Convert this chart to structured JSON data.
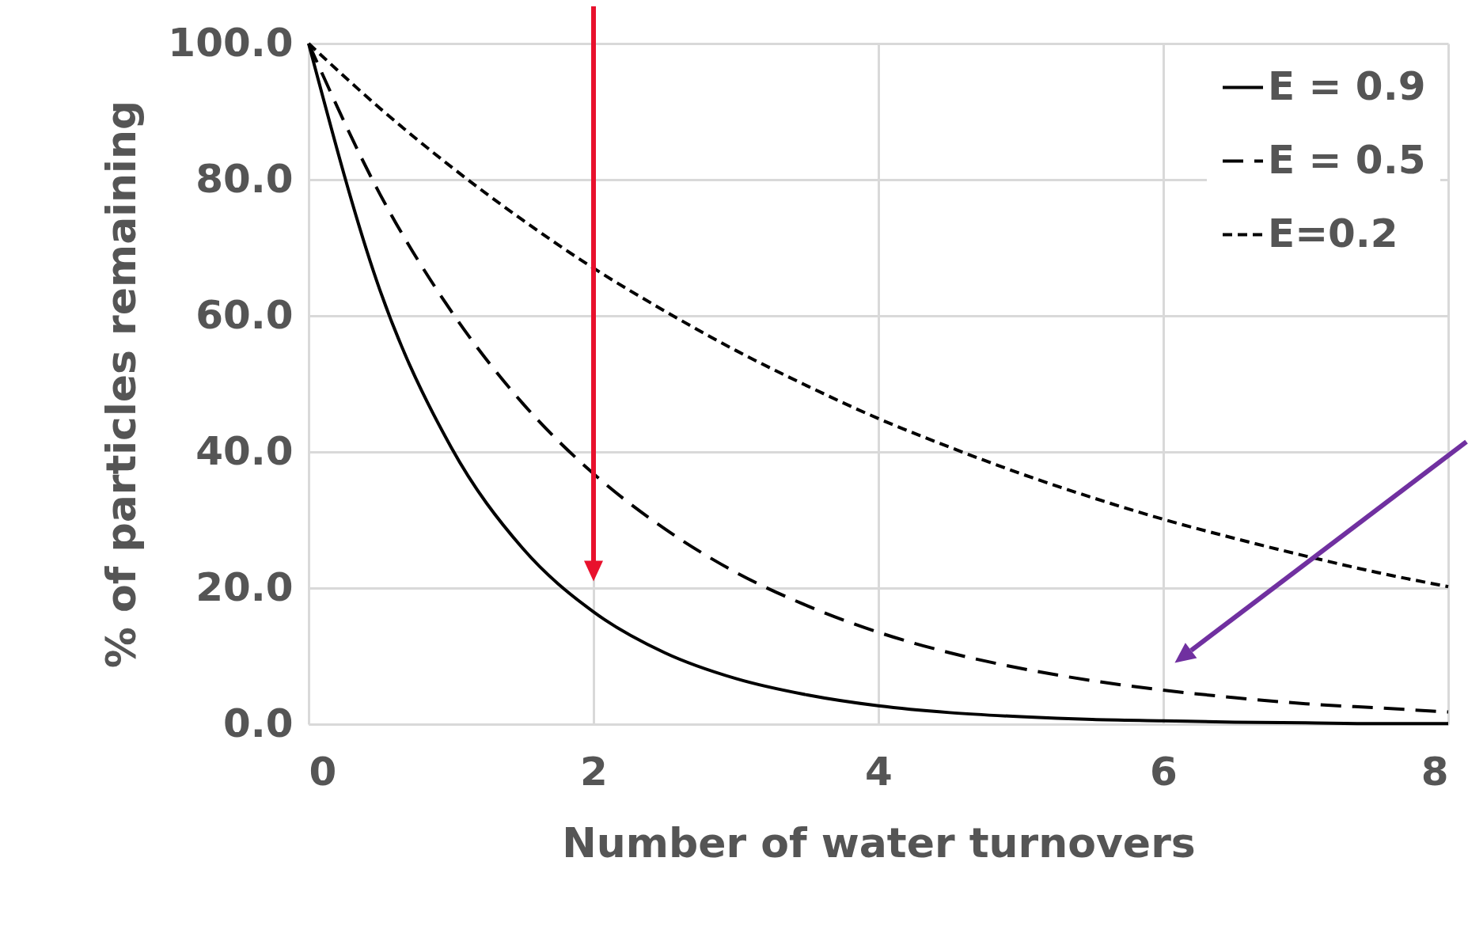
{
  "chart_data": {
    "type": "line",
    "xlabel": "Number of water turnovers",
    "ylabel": "% of particles remaining",
    "x": [
      0,
      0.5,
      1,
      1.5,
      2,
      2.5,
      3,
      3.5,
      4,
      4.5,
      5,
      5.5,
      6,
      6.5,
      7,
      7.5,
      8
    ],
    "series": [
      {
        "name": "E = 0.9",
        "color": "#000000",
        "line_style": "solid",
        "values": [
          100,
          63.8,
          40.7,
          25.9,
          16.5,
          10.5,
          6.7,
          4.3,
          2.7,
          1.7,
          1.1,
          0.7,
          0.5,
          0.3,
          0.2,
          0.1,
          0.1
        ]
      },
      {
        "name": "E = 0.5",
        "color": "#000000",
        "line_style": "dashed",
        "values": [
          100,
          77.9,
          60.7,
          47.2,
          36.8,
          28.7,
          22.3,
          17.4,
          13.5,
          10.5,
          8.2,
          6.4,
          5.0,
          3.9,
          3.0,
          2.4,
          1.8
        ]
      },
      {
        "name": "E=0.2",
        "color": "#000000",
        "line_style": "dotted",
        "values": [
          100,
          90.5,
          81.9,
          74.1,
          67.0,
          60.7,
          54.9,
          49.7,
          44.9,
          40.7,
          36.8,
          33.3,
          30.1,
          27.3,
          24.7,
          22.3,
          20.2
        ]
      }
    ],
    "xlim": [
      0,
      8
    ],
    "xticks": [
      0,
      2,
      4,
      6,
      8
    ],
    "ylim": [
      0,
      100
    ],
    "yticks": [
      {
        "value": 0,
        "label": "0.0"
      },
      {
        "value": 20,
        "label": "20.0"
      },
      {
        "value": 40,
        "label": "40.0"
      },
      {
        "value": 60,
        "label": "60.0"
      },
      {
        "value": 80,
        "label": "80.0"
      },
      {
        "value": 100,
        "label": "100.0"
      }
    ],
    "ref_lines": [
      {
        "axis": "x",
        "value": 2,
        "color": "#e8112d"
      }
    ],
    "grid": true,
    "legend": "top right",
    "marker": "none"
  }
}
